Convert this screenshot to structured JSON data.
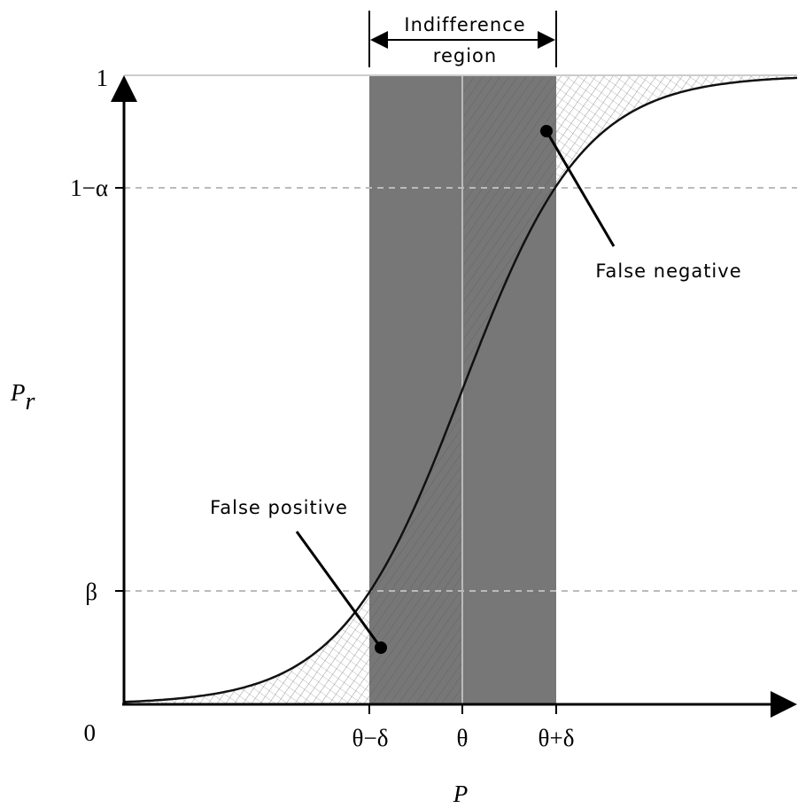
{
  "header": {
    "line1": "Indifference",
    "line2": "region"
  },
  "y_axis": {
    "label": "P",
    "label_subscript": "r",
    "ticks": [
      "1",
      "1−α",
      "β",
      "0"
    ]
  },
  "x_axis": {
    "label": "P",
    "ticks": [
      "θ−δ",
      "θ",
      "θ+δ"
    ]
  },
  "annotations": {
    "false_negative": "False negative",
    "false_positive": "False positive"
  }
}
